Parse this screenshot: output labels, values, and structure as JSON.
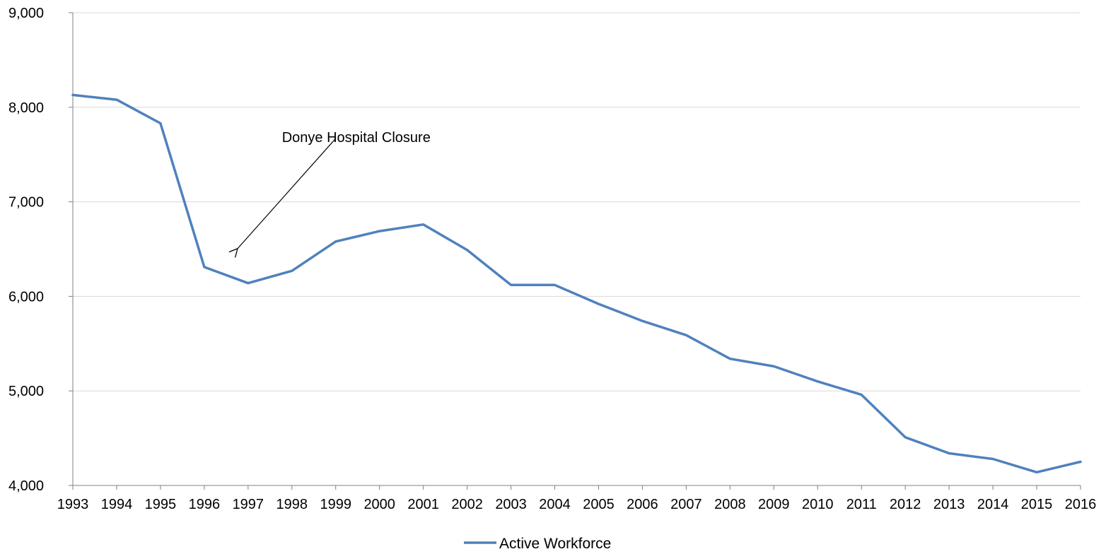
{
  "chart_data": {
    "type": "line",
    "x": [
      1993,
      1994,
      1995,
      1996,
      1997,
      1998,
      1999,
      2000,
      2001,
      2002,
      2003,
      2004,
      2005,
      2006,
      2007,
      2008,
      2009,
      2010,
      2011,
      2012,
      2013,
      2014,
      2015,
      2016
    ],
    "x_tick_labels": [
      "1993",
      "1994",
      "1995",
      "1996",
      "1997",
      "1998",
      "1999",
      "2000",
      "2001",
      "2002",
      "2003",
      "2004",
      "2005",
      "2006",
      "2007",
      "2008",
      "2009",
      "2010",
      "2011",
      "2012",
      "2013",
      "2014",
      "2015",
      "2016"
    ],
    "series": [
      {
        "name": "Active Workforce",
        "color": "#4f81bd",
        "values": [
          8130,
          8080,
          7830,
          6310,
          6140,
          6270,
          6580,
          6690,
          6760,
          6490,
          6120,
          6120,
          5920,
          5740,
          5590,
          5340,
          5260,
          5100,
          4960,
          4510,
          4340,
          4280,
          4140,
          4250
        ]
      }
    ],
    "ylim": [
      4000,
      9000
    ],
    "y_ticks": [
      4000,
      5000,
      6000,
      7000,
      8000,
      9000
    ],
    "y_tick_labels": [
      "4,000",
      "5,000",
      "6,000",
      "7,000",
      "8,000",
      "9,000"
    ],
    "grid": true,
    "legend": {
      "position": "bottom",
      "label": "Active Workforce"
    },
    "annotations": [
      {
        "text": "Donye Hospital Closure",
        "text_at": {
          "x": 1999,
          "y": 7700
        },
        "arrow_to": {
          "x": 1996.75,
          "y": 6500
        }
      }
    ],
    "colors": {
      "line": "#4f81bd",
      "grid": "#d9d9d9",
      "axis": "#808080",
      "text": "#000000"
    }
  }
}
